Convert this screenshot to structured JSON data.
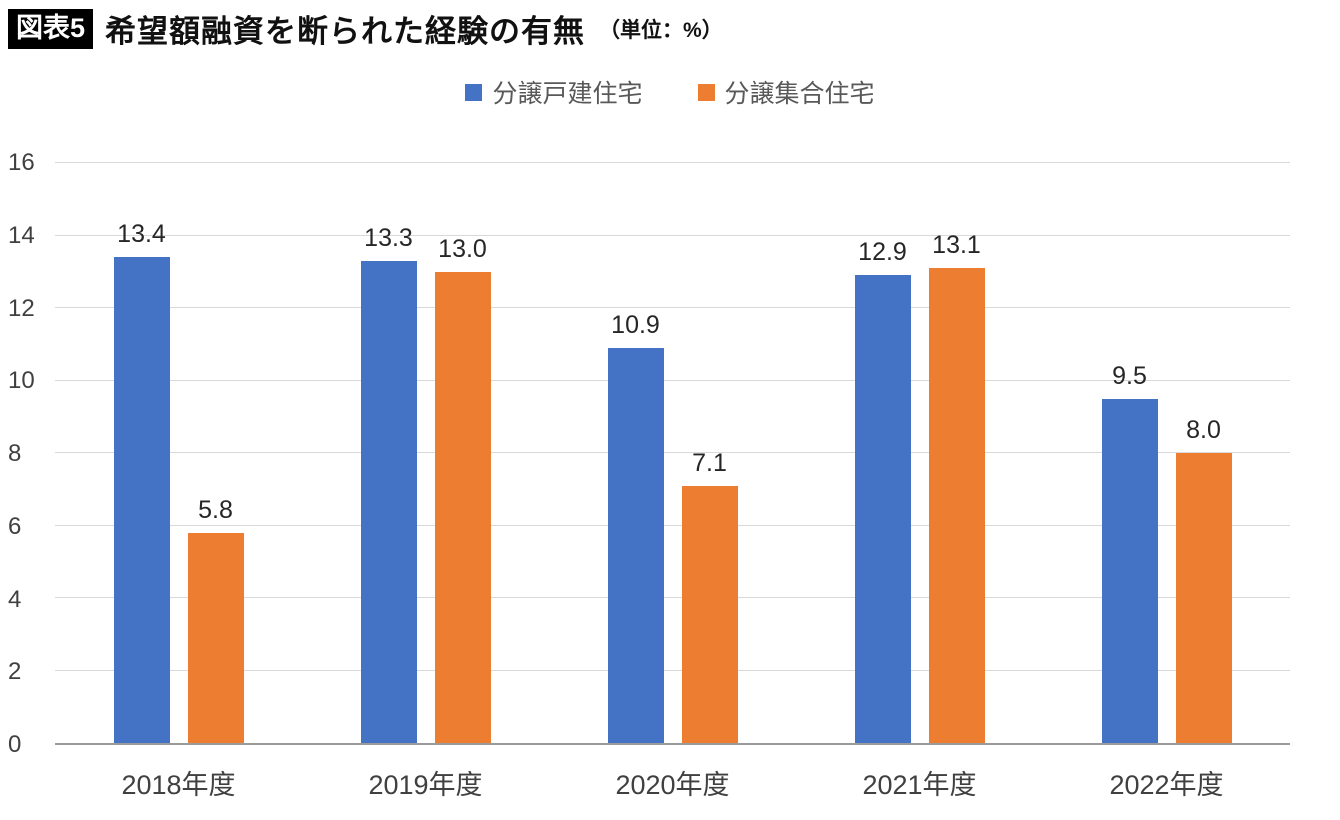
{
  "header": {
    "badge": "図表5",
    "title": "希望額融資を断られた経験の有無",
    "unit": "（単位：%）"
  },
  "chart_data": {
    "type": "bar",
    "title": "希望額融資を断られた経験の有無（単位：%）",
    "categories": [
      "2018年度",
      "2019年度",
      "2020年度",
      "2021年度",
      "2022年度"
    ],
    "series": [
      {
        "name": "分譲戸建住宅",
        "color": "#4472C4",
        "values": [
          13.4,
          13.3,
          10.9,
          12.9,
          9.5
        ],
        "labels": [
          "13.4",
          "13.3",
          "10.9",
          "12.9",
          "9.5"
        ]
      },
      {
        "name": "分譲集合住宅",
        "color": "#ED7D31",
        "values": [
          5.8,
          13.0,
          7.1,
          13.1,
          8.0
        ],
        "labels": [
          "5.8",
          "13.0",
          "7.1",
          "13.1",
          "8.0"
        ]
      }
    ],
    "xlabel": "",
    "ylabel": "",
    "ylim": [
      0,
      16
    ],
    "yticks": [
      0,
      2,
      4,
      6,
      8,
      10,
      12,
      14,
      16
    ],
    "grid": true,
    "legend_position": "top"
  }
}
